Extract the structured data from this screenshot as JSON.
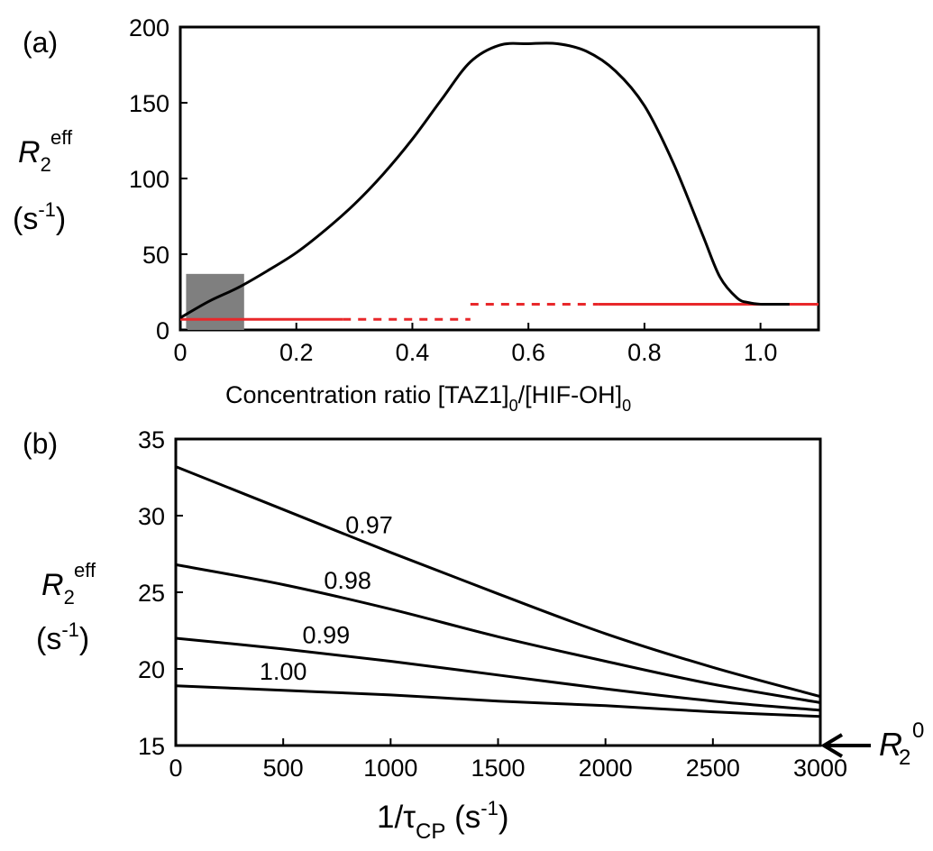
{
  "colors": {
    "axis": "#000000",
    "curve": "#000000",
    "reference": "#e8282b",
    "shade": "#7f7f7f"
  },
  "chart_data": [
    {
      "panel": "(a)",
      "type": "line",
      "xlabel": {
        "main": "Concentration ratio [TAZ1]",
        "sub1": "0",
        "mid": "/[HIF-OH]",
        "sub2": "0"
      },
      "ylabel": {
        "main": "R",
        "sub": "2",
        "sup": "eff",
        "unit_open": "(s",
        "unit_sup": "-1",
        "unit_close": ")"
      },
      "xlim": [
        0,
        1.1
      ],
      "ylim": [
        0,
        200
      ],
      "xticks": [
        "0",
        "0.2",
        "0.4",
        "0.6",
        "0.8",
        "1.0"
      ],
      "yticks": [
        "0",
        "50",
        "100",
        "150",
        "200"
      ],
      "series": [
        {
          "style": "solid-black",
          "x": [
            0.0,
            0.05,
            0.1,
            0.15,
            0.2,
            0.25,
            0.3,
            0.35,
            0.4,
            0.45,
            0.5,
            0.55,
            0.6,
            0.65,
            0.7,
            0.75,
            0.8,
            0.85,
            0.9,
            0.93,
            0.96,
            0.98,
            1.0,
            1.02,
            1.05
          ],
          "y": [
            8,
            19,
            28,
            39,
            51,
            66,
            83,
            103,
            126,
            152,
            177,
            188,
            189,
            189,
            184,
            171,
            148,
            110,
            63,
            35,
            21,
            18,
            17,
            17,
            17
          ]
        }
      ],
      "reference_lines": [
        {
          "style": "solid",
          "y": 7,
          "x_range": [
            0.0,
            0.28
          ]
        },
        {
          "style": "dotted",
          "y": 7,
          "x_range": [
            0.28,
            0.5
          ]
        },
        {
          "style": "dotted",
          "y": 17,
          "x_range": [
            0.5,
            0.72
          ]
        },
        {
          "style": "solid",
          "y": 17,
          "x_range": [
            0.72,
            1.1
          ]
        }
      ],
      "shaded_region": {
        "x_range": [
          0.01,
          0.11
        ],
        "y_range": [
          0,
          37
        ]
      }
    },
    {
      "panel": "(b)",
      "type": "line",
      "xlabel": {
        "main": "1/τ",
        "sub": "CP",
        "unit_open": " (s",
        "unit_sup": "-1",
        "unit_close": ")"
      },
      "ylabel": {
        "main": "R",
        "sub": "2",
        "sup": "eff",
        "unit_open": "(s",
        "unit_sup": "-1",
        "unit_close": ")"
      },
      "xlim": [
        0,
        3000
      ],
      "ylim": [
        15,
        35
      ],
      "xticks": [
        "0",
        "500",
        "1000",
        "1500",
        "2000",
        "2500",
        "3000"
      ],
      "yticks": [
        "15",
        "20",
        "25",
        "30",
        "35"
      ],
      "series": [
        {
          "name": "0.97",
          "x": [
            0,
            500,
            1000,
            1500,
            2000,
            2500,
            3000
          ],
          "y": [
            33.2,
            30.4,
            27.6,
            24.9,
            22.3,
            20.1,
            18.2
          ]
        },
        {
          "name": "0.98",
          "x": [
            0,
            500,
            1000,
            1500,
            2000,
            2500,
            3000
          ],
          "y": [
            26.8,
            25.5,
            23.9,
            22.1,
            20.5,
            19.0,
            17.8
          ]
        },
        {
          "name": "0.99",
          "x": [
            0,
            500,
            1000,
            1500,
            2000,
            2500,
            3000
          ],
          "y": [
            22.0,
            21.3,
            20.5,
            19.6,
            18.7,
            17.9,
            17.3
          ]
        },
        {
          "name": "1.00",
          "x": [
            0,
            500,
            1000,
            1500,
            2000,
            2500,
            3000
          ],
          "y": [
            18.9,
            18.6,
            18.3,
            17.9,
            17.6,
            17.2,
            16.9
          ]
        }
      ],
      "marker": {
        "label_main": "R",
        "label_sub": "2",
        "label_sup": "0",
        "y": 15,
        "pointer": "arrow-left"
      }
    }
  ]
}
